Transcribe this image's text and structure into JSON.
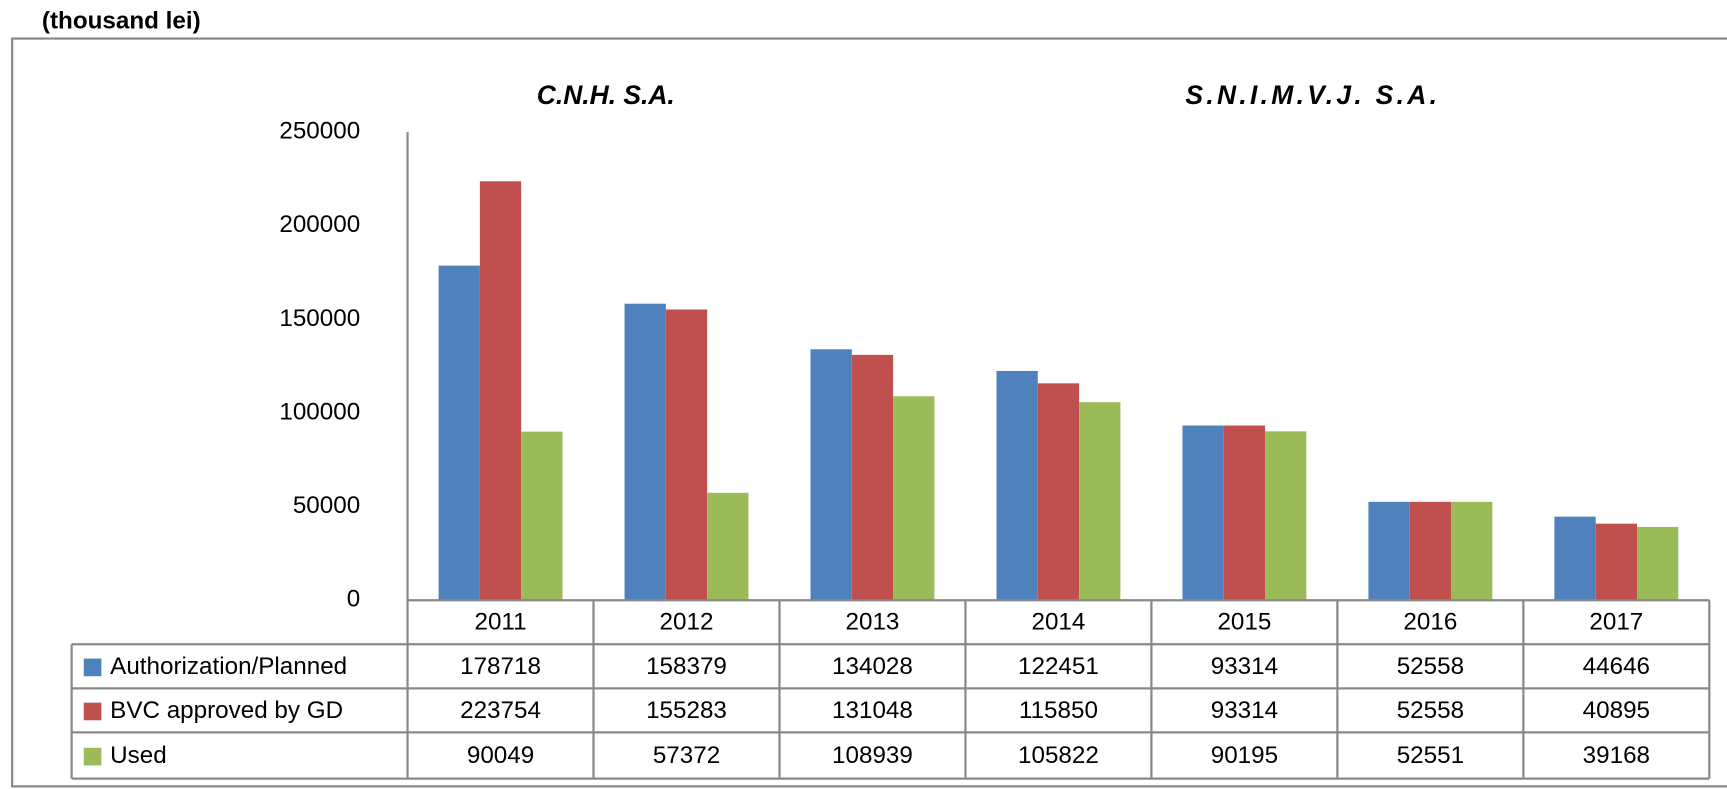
{
  "chart_data": {
    "type": "bar",
    "ylabel": "(thousand lei)",
    "annotations": [
      "C.N.H. S.A.",
      "S.N.I.M.V.J. S.A."
    ],
    "categories": [
      "2011",
      "2012",
      "2013",
      "2014",
      "2015",
      "2016",
      "2017"
    ],
    "series": [
      {
        "name": "Authorization/Planned",
        "color": "#4f81bd",
        "values": [
          178718,
          158379,
          134028,
          122451,
          93314,
          52558,
          44646
        ]
      },
      {
        "name": "BVC approved by GD",
        "color": "#c0504d",
        "values": [
          223754,
          155283,
          131048,
          115850,
          93314,
          52558,
          40895
        ]
      },
      {
        "name": "Used",
        "color": "#9bbb59",
        "values": [
          90049,
          57372,
          108939,
          105822,
          90195,
          52551,
          39168
        ]
      }
    ],
    "ylim": [
      0,
      250000
    ],
    "yticks": [
      0,
      50000,
      100000,
      150000,
      200000,
      250000
    ],
    "grid": false
  }
}
